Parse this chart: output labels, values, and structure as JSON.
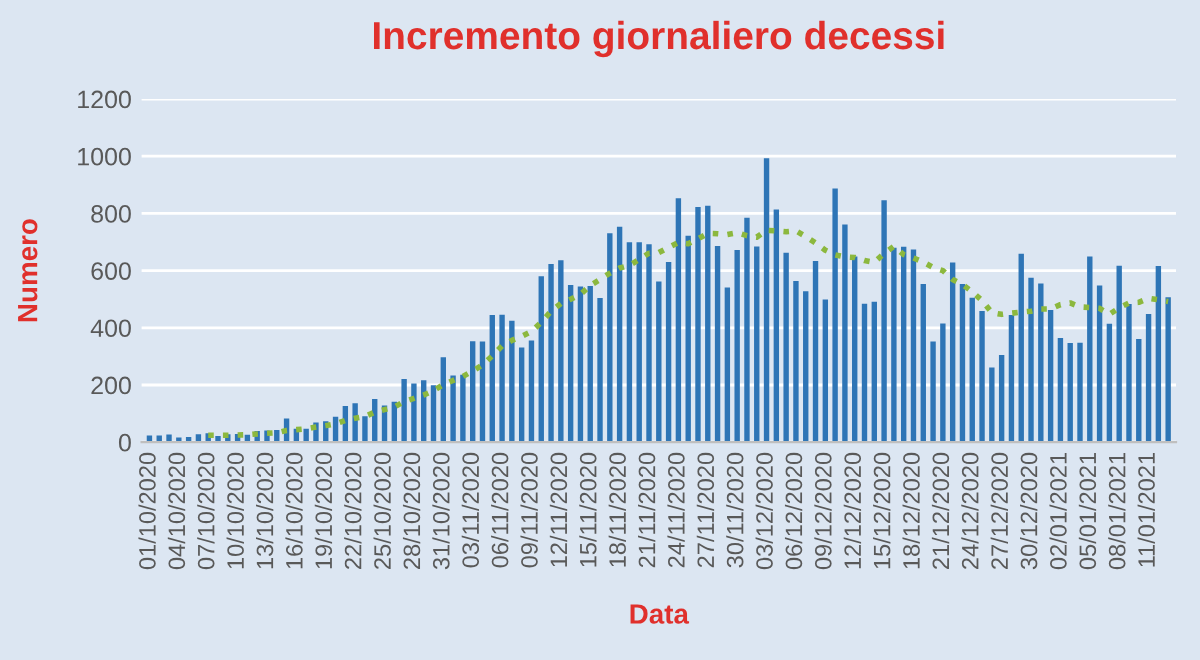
{
  "chart_data": {
    "type": "bar",
    "title": "Incremento giornaliero decessi",
    "xlabel": "Data",
    "ylabel": "Numero",
    "categories": [
      "01/10/2020",
      null,
      null,
      "04/10/2020",
      null,
      null,
      "07/10/2020",
      null,
      null,
      "10/10/2020",
      null,
      null,
      "13/10/2020",
      null,
      null,
      "16/10/2020",
      null,
      null,
      "19/10/2020",
      null,
      null,
      "22/10/2020",
      null,
      null,
      "25/10/2020",
      null,
      null,
      "28/10/2020",
      null,
      null,
      "31/10/2020",
      null,
      null,
      "03/11/2020",
      null,
      null,
      "06/11/2020",
      null,
      null,
      "09/11/2020",
      null,
      null,
      "12/11/2020",
      null,
      null,
      "15/11/2020",
      null,
      null,
      "18/11/2020",
      null,
      null,
      "21/11/2020",
      null,
      null,
      "24/11/2020",
      null,
      null,
      "27/11/2020",
      null,
      null,
      "30/11/2020",
      null,
      null,
      "03/12/2020",
      null,
      null,
      "06/12/2020",
      null,
      null,
      "09/12/2020",
      null,
      null,
      "12/12/2020",
      null,
      null,
      "15/12/2020",
      null,
      null,
      "18/12/2020",
      null,
      null,
      "21/12/2020",
      null,
      null,
      "24/12/2020",
      null,
      null,
      "27/12/2020",
      null,
      null,
      "30/12/2020",
      null,
      null,
      "02/01/2021",
      null,
      null,
      "05/01/2021",
      null,
      null,
      "08/01/2021",
      null,
      null,
      "11/01/2021",
      null,
      null
    ],
    "series": [
      {
        "color": "#2e75b6",
        "values": [
          23,
          23,
          27,
          16,
          18,
          28,
          31,
          22,
          28,
          29,
          26,
          39,
          41,
          43,
          83,
          47,
          47,
          69,
          73,
          89,
          127,
          136,
          91,
          151,
          128,
          141,
          221,
          205,
          217,
          199,
          297,
          233,
          236,
          353,
          352,
          445,
          446,
          425,
          331,
          356,
          580,
          623,
          636,
          550,
          544,
          546,
          504,
          731,
          753,
          699,
          699,
          692,
          562,
          630,
          853,
          722,
          822,
          827,
          686,
          541,
          672,
          785,
          684,
          993,
          814,
          662,
          564,
          528,
          634,
          499,
          887,
          761,
          649,
          484,
          491,
          846,
          680,
          683,
          674,
          553,
          352,
          415,
          628,
          553,
          505,
          459,
          261,
          305,
          445,
          659,
          575,
          555,
          462,
          364,
          347,
          348,
          649,
          548,
          414,
          617,
          483,
          361,
          448,
          616,
          507
        ]
      },
      {
        "type": "line",
        "color": "#8cb83e",
        "line_style": "dotted",
        "values": [
          null,
          null,
          null,
          null,
          null,
          null,
          24,
          24,
          24,
          25,
          26,
          29,
          31,
          33,
          41,
          44,
          47,
          53,
          58,
          64,
          76,
          84,
          90,
          105,
          114,
          123,
          142,
          153,
          165,
          180,
          201,
          216,
          230,
          249,
          270,
          302,
          337,
          356,
          370,
          387,
          419,
          458,
          485,
          500,
          517,
          548,
          569,
          591,
          609,
          618,
          639,
          661,
          663,
          681,
          698,
          694,
          711,
          730,
          729,
          726,
          732,
          722,
          717,
          741,
          739,
          736,
          739,
          719,
          697,
          671,
          655,
          648,
          646,
          635,
          629,
          660,
          685,
          656,
          644,
          630,
          611,
          600,
          569,
          551,
          526,
          495,
          453,
          447,
          451,
          455,
          458,
          466,
          466,
          481,
          487,
          473,
          471,
          468,
          447,
          470,
          487,
          489,
          503,
          498,
          492
        ]
      }
    ],
    "ylim": [
      0,
      1200
    ],
    "yticks": [
      0,
      200,
      400,
      600,
      800,
      1000,
      1200
    ],
    "grid": "y",
    "legend": false
  }
}
